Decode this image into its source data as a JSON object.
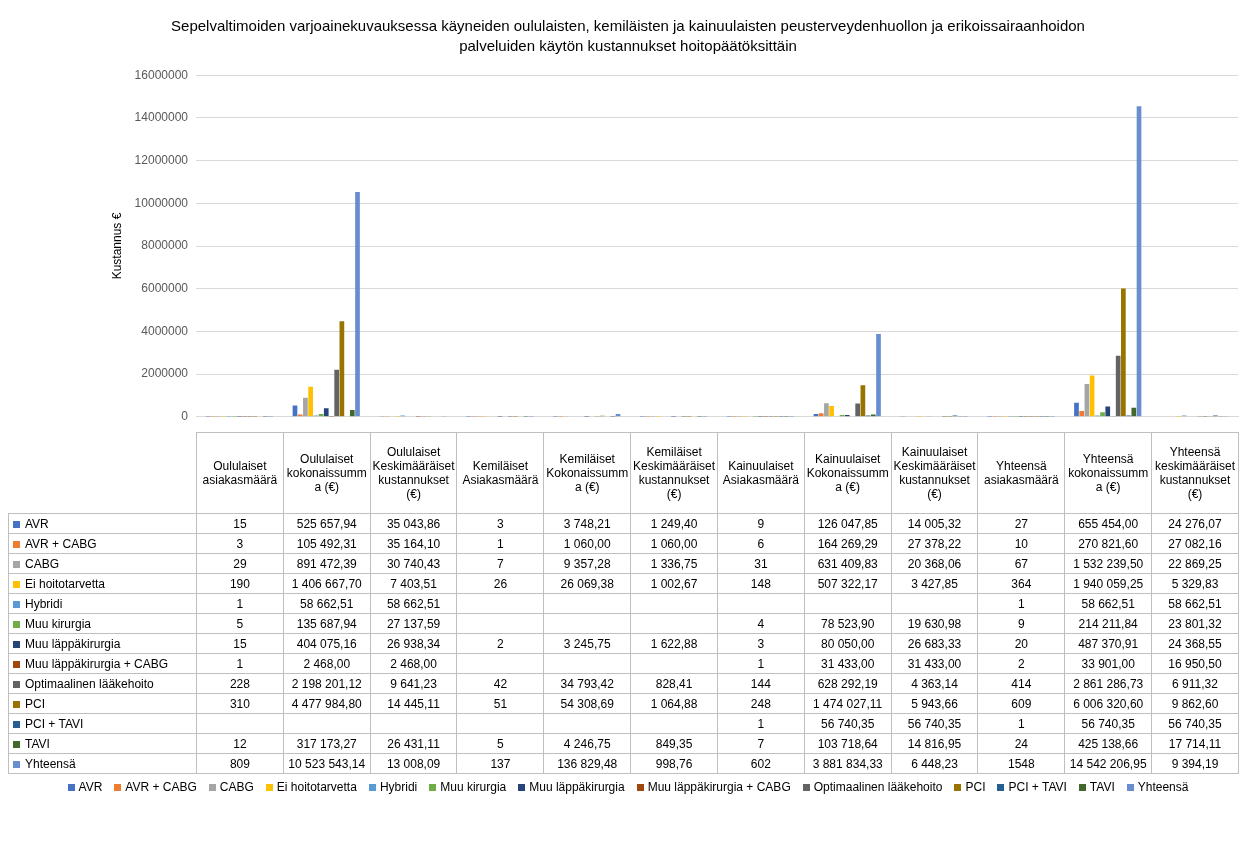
{
  "chart_data": {
    "type": "bar",
    "title": "Sepelvaltimoiden varjoainekuvauksessa käyneiden oululaisten, kemiläisten ja kainuulaisten peusterveydenhuollon ja erikoissairaanhoidon palveluiden käytön kustannukset hoitopäätöksittäin",
    "ylabel": "Kustannus €",
    "categories": [
      "Oululaiset asiakasmäärä",
      "Oululaiset kokonaissumma (€)",
      "Oululaiset Keskimääräiset kustannukset (€)",
      "Kemiläiset Asiakasmäärä",
      "Kemiläiset Kokonaissumma (€)",
      "Kemiläiset Keskimääräiset kustannukset (€)",
      "Kainuulaiset Asiakasmäärä",
      "Kainuulaiset Kokonaissumma (€)",
      "Kainuulaiset Keskimääräiset kustannukset (€)",
      "Yhteensä asiakasmäärä",
      "Yhteensä kokonaissumma (€)",
      "Yhteensä keskimääräiset kustannukset (€)"
    ],
    "ylim": [
      0,
      16000000
    ],
    "yticks": [
      0,
      2000000,
      4000000,
      6000000,
      8000000,
      10000000,
      12000000,
      14000000,
      16000000
    ],
    "grid": "y",
    "legend": "bottom",
    "series": [
      {
        "name": "AVR",
        "color": "#4472c4",
        "values": [
          15,
          525657.94,
          35043.86,
          3,
          3748.21,
          1249.4,
          9,
          126047.85,
          14005.32,
          27,
          655454.0,
          24276.07
        ],
        "value_labels": [
          "15",
          "525 657,94",
          "35 043,86",
          "3",
          "3 748,21",
          "1 249,40",
          "9",
          "126 047,85",
          "14 005,32",
          "27",
          "655 454,00",
          "24 276,07"
        ]
      },
      {
        "name": "AVR + CABG",
        "color": "#ed7d31",
        "values": [
          3,
          105492.31,
          35164.1,
          1,
          1060.0,
          1060.0,
          6,
          164269.29,
          27378.22,
          10,
          270821.6,
          27082.16
        ],
        "value_labels": [
          "3",
          "105 492,31",
          "35 164,10",
          "1",
          "1 060,00",
          "1 060,00",
          "6",
          "164 269,29",
          "27 378,22",
          "10",
          "270 821,60",
          "27 082,16"
        ]
      },
      {
        "name": "CABG",
        "color": "#a5a5a5",
        "values": [
          29,
          891472.39,
          30740.43,
          7,
          9357.28,
          1336.75,
          31,
          631409.83,
          20368.06,
          67,
          1532239.5,
          22869.25
        ],
        "value_labels": [
          "29",
          "891 472,39",
          "30 740,43",
          "7",
          "9 357,28",
          "1 336,75",
          "31",
          "631 409,83",
          "20 368,06",
          "67",
          "1 532 239,50",
          "22 869,25"
        ]
      },
      {
        "name": "Ei hoitotarvetta",
        "color": "#ffc000",
        "values": [
          190,
          1406667.7,
          7403.51,
          26,
          26069.38,
          1002.67,
          148,
          507322.17,
          3427.85,
          364,
          1940059.25,
          5329.83
        ],
        "value_labels": [
          "190",
          "1 406 667,70",
          "7 403,51",
          "26",
          "26 069,38",
          "1 002,67",
          "148",
          "507 322,17",
          "3 427,85",
          "364",
          "1 940 059,25",
          "5 329,83"
        ]
      },
      {
        "name": "Hybridi",
        "color": "#5b9bd5",
        "values": [
          1,
          58662.51,
          58662.51,
          null,
          null,
          null,
          null,
          null,
          null,
          1,
          58662.51,
          58662.51
        ],
        "value_labels": [
          "1",
          "58 662,51",
          "58 662,51",
          null,
          null,
          null,
          null,
          null,
          null,
          "1",
          "58 662,51",
          "58 662,51"
        ]
      },
      {
        "name": "Muu kirurgia",
        "color": "#70ad47",
        "values": [
          5,
          135687.94,
          27137.59,
          null,
          null,
          null,
          4,
          78523.9,
          19630.98,
          9,
          214211.84,
          23801.32
        ],
        "value_labels": [
          "5",
          "135 687,94",
          "27 137,59",
          null,
          null,
          null,
          "4",
          "78 523,90",
          "19 630,98",
          "9",
          "214 211,84",
          "23 801,32"
        ]
      },
      {
        "name": "Muu läppäkirurgia",
        "color": "#264478",
        "values": [
          15,
          404075.16,
          26938.34,
          2,
          3245.75,
          1622.88,
          3,
          80050.0,
          26683.33,
          20,
          487370.91,
          24368.55
        ],
        "value_labels": [
          "15",
          "404 075,16",
          "26 938,34",
          "2",
          "3 245,75",
          "1 622,88",
          "3",
          "80 050,00",
          "26 683,33",
          "20",
          "487 370,91",
          "24 368,55"
        ]
      },
      {
        "name": "Muu läppäkirurgia + CABG",
        "color": "#9e480e",
        "values": [
          1,
          2468.0,
          2468.0,
          null,
          null,
          null,
          1,
          31433.0,
          31433.0,
          2,
          33901.0,
          16950.5
        ],
        "value_labels": [
          "1",
          "2 468,00",
          "2 468,00",
          null,
          null,
          null,
          "1",
          "31 433,00",
          "31 433,00",
          "2",
          "33 901,00",
          "16 950,50"
        ]
      },
      {
        "name": "Optimaalinen lääkehoito",
        "color": "#636363",
        "values": [
          228,
          2198201.12,
          9641.23,
          42,
          34793.42,
          828.41,
          144,
          628292.19,
          4363.14,
          414,
          2861286.73,
          6911.32
        ],
        "value_labels": [
          "228",
          "2 198 201,12",
          "9 641,23",
          "42",
          "34 793,42",
          "828,41",
          "144",
          "628 292,19",
          "4 363,14",
          "414",
          "2 861 286,73",
          "6 911,32"
        ]
      },
      {
        "name": "PCI",
        "color": "#997300",
        "values": [
          310,
          4477984.8,
          14445.11,
          51,
          54308.69,
          1064.88,
          248,
          1474027.11,
          5943.66,
          609,
          6006320.6,
          9862.6
        ],
        "value_labels": [
          "310",
          "4 477 984,80",
          "14 445,11",
          "51",
          "54 308,69",
          "1 064,88",
          "248",
          "1 474 027,11",
          "5 943,66",
          "609",
          "6 006 320,60",
          "9 862,60"
        ]
      },
      {
        "name": "PCI + TAVI",
        "color": "#255e91",
        "values": [
          null,
          null,
          null,
          null,
          null,
          null,
          1,
          56740.35,
          56740.35,
          1,
          56740.35,
          56740.35
        ],
        "value_labels": [
          null,
          null,
          null,
          null,
          null,
          null,
          "1",
          "56 740,35",
          "56 740,35",
          "1",
          "56 740,35",
          "56 740,35"
        ]
      },
      {
        "name": "TAVI",
        "color": "#43682b",
        "values": [
          12,
          317173.27,
          26431.11,
          5,
          4246.75,
          849.35,
          7,
          103718.64,
          14816.95,
          24,
          425138.66,
          17714.11
        ],
        "value_labels": [
          "12",
          "317 173,27",
          "26 431,11",
          "5",
          "4 246,75",
          "849,35",
          "7",
          "103 718,64",
          "14 816,95",
          "24",
          "425 138,66",
          "17 714,11"
        ]
      },
      {
        "name": "Yhteensä",
        "color": "#698ed0",
        "values": [
          809,
          10523543.14,
          13008.09,
          137,
          136829.48,
          998.76,
          602,
          3881834.33,
          6448.23,
          1548,
          14542206.95,
          9394.19
        ],
        "value_labels": [
          "809",
          "10 523 543,14",
          "13 008,09",
          "137",
          "136 829,48",
          "998,76",
          "602",
          "3 881 834,33",
          "6 448,23",
          "1548",
          "14 542 206,95",
          "9 394,19"
        ]
      }
    ]
  }
}
